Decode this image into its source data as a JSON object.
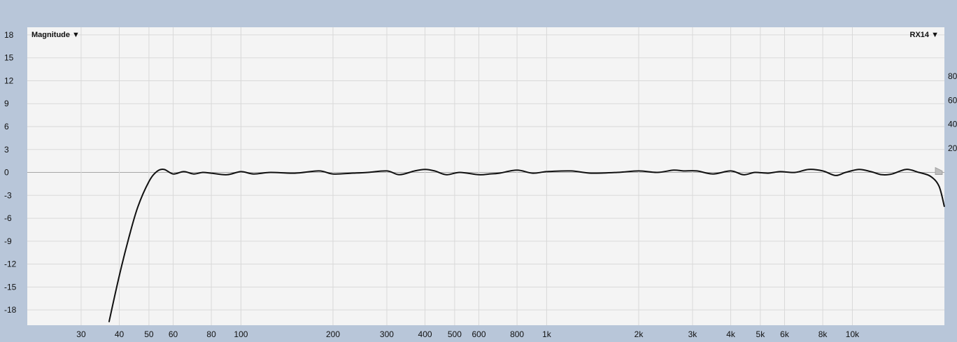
{
  "controls": {
    "left_menu": "Magnitude ▼",
    "right_menu": "RX14 ▼"
  },
  "colors": {
    "frame": "#b8c6d9",
    "plot_bg": "#f4f4f4",
    "grid": "#d9d9d9",
    "zero_line": "#a6a6a6",
    "curve": "#111111",
    "marker": "#bdbdbd"
  },
  "chart_data": {
    "type": "line",
    "title": "",
    "xlabel": "",
    "ylabel": "",
    "x_scale": "log",
    "xlim": [
      20,
      20000
    ],
    "ylim": [
      -20,
      19
    ],
    "grid": true,
    "y_ticks": [
      18,
      15,
      12,
      9,
      6,
      3,
      0,
      -3,
      -6,
      -9,
      -12,
      -15,
      -18
    ],
    "y_tick_labels": [
      "18",
      "15",
      "12",
      "9",
      "6",
      "3",
      "0",
      "-3",
      "-6",
      "-9",
      "-12",
      "-15",
      "-18"
    ],
    "x_ticks": [
      30,
      40,
      50,
      60,
      80,
      100,
      200,
      300,
      400,
      500,
      600,
      800,
      1000,
      2000,
      3000,
      4000,
      5000,
      6000,
      8000,
      10000
    ],
    "x_tick_labels": [
      "30",
      "40",
      "50",
      "60",
      "80",
      "100",
      "200",
      "300",
      "400",
      "500",
      "600",
      "800",
      "1k",
      "2k",
      "3k",
      "4k",
      "5k",
      "6k",
      "8k",
      "10k"
    ],
    "right_axis_tick_labels": [
      "80",
      "60",
      "40",
      "20"
    ],
    "right_axis_values": [
      80,
      60,
      40,
      20
    ],
    "series": [
      {
        "x": [
          37,
          40,
          43,
          46,
          50,
          53,
          56,
          60,
          65,
          70,
          75,
          80,
          90,
          100,
          110,
          125,
          150,
          180,
          200,
          230,
          260,
          300,
          330,
          370,
          400,
          430,
          470,
          520,
          600,
          650,
          700,
          800,
          900,
          1000,
          1200,
          1400,
          1700,
          2000,
          2300,
          2600,
          2800,
          3100,
          3500,
          4000,
          4400,
          4800,
          5300,
          5800,
          6500,
          7200,
          8000,
          8800,
          9500,
          10500,
          11500,
          12500,
          13500,
          15000,
          16500,
          18000,
          19200,
          20000
        ],
        "values": [
          -19.6,
          -13.5,
          -8.5,
          -4.5,
          -1.2,
          0.1,
          0.4,
          -0.2,
          0.1,
          -0.2,
          0.0,
          -0.1,
          -0.3,
          0.1,
          -0.2,
          0.0,
          -0.1,
          0.2,
          -0.2,
          -0.1,
          0.0,
          0.2,
          -0.3,
          0.2,
          0.4,
          0.2,
          -0.3,
          0.0,
          -0.3,
          -0.2,
          -0.1,
          0.3,
          -0.1,
          0.1,
          0.2,
          -0.1,
          0.0,
          0.2,
          0.0,
          0.3,
          0.2,
          0.2,
          -0.2,
          0.2,
          -0.3,
          0.0,
          -0.1,
          0.1,
          0.0,
          0.4,
          0.2,
          -0.4,
          0.0,
          0.4,
          0.1,
          -0.3,
          -0.2,
          0.4,
          0.0,
          -0.5,
          -1.8,
          -4.5
        ]
      }
    ]
  }
}
